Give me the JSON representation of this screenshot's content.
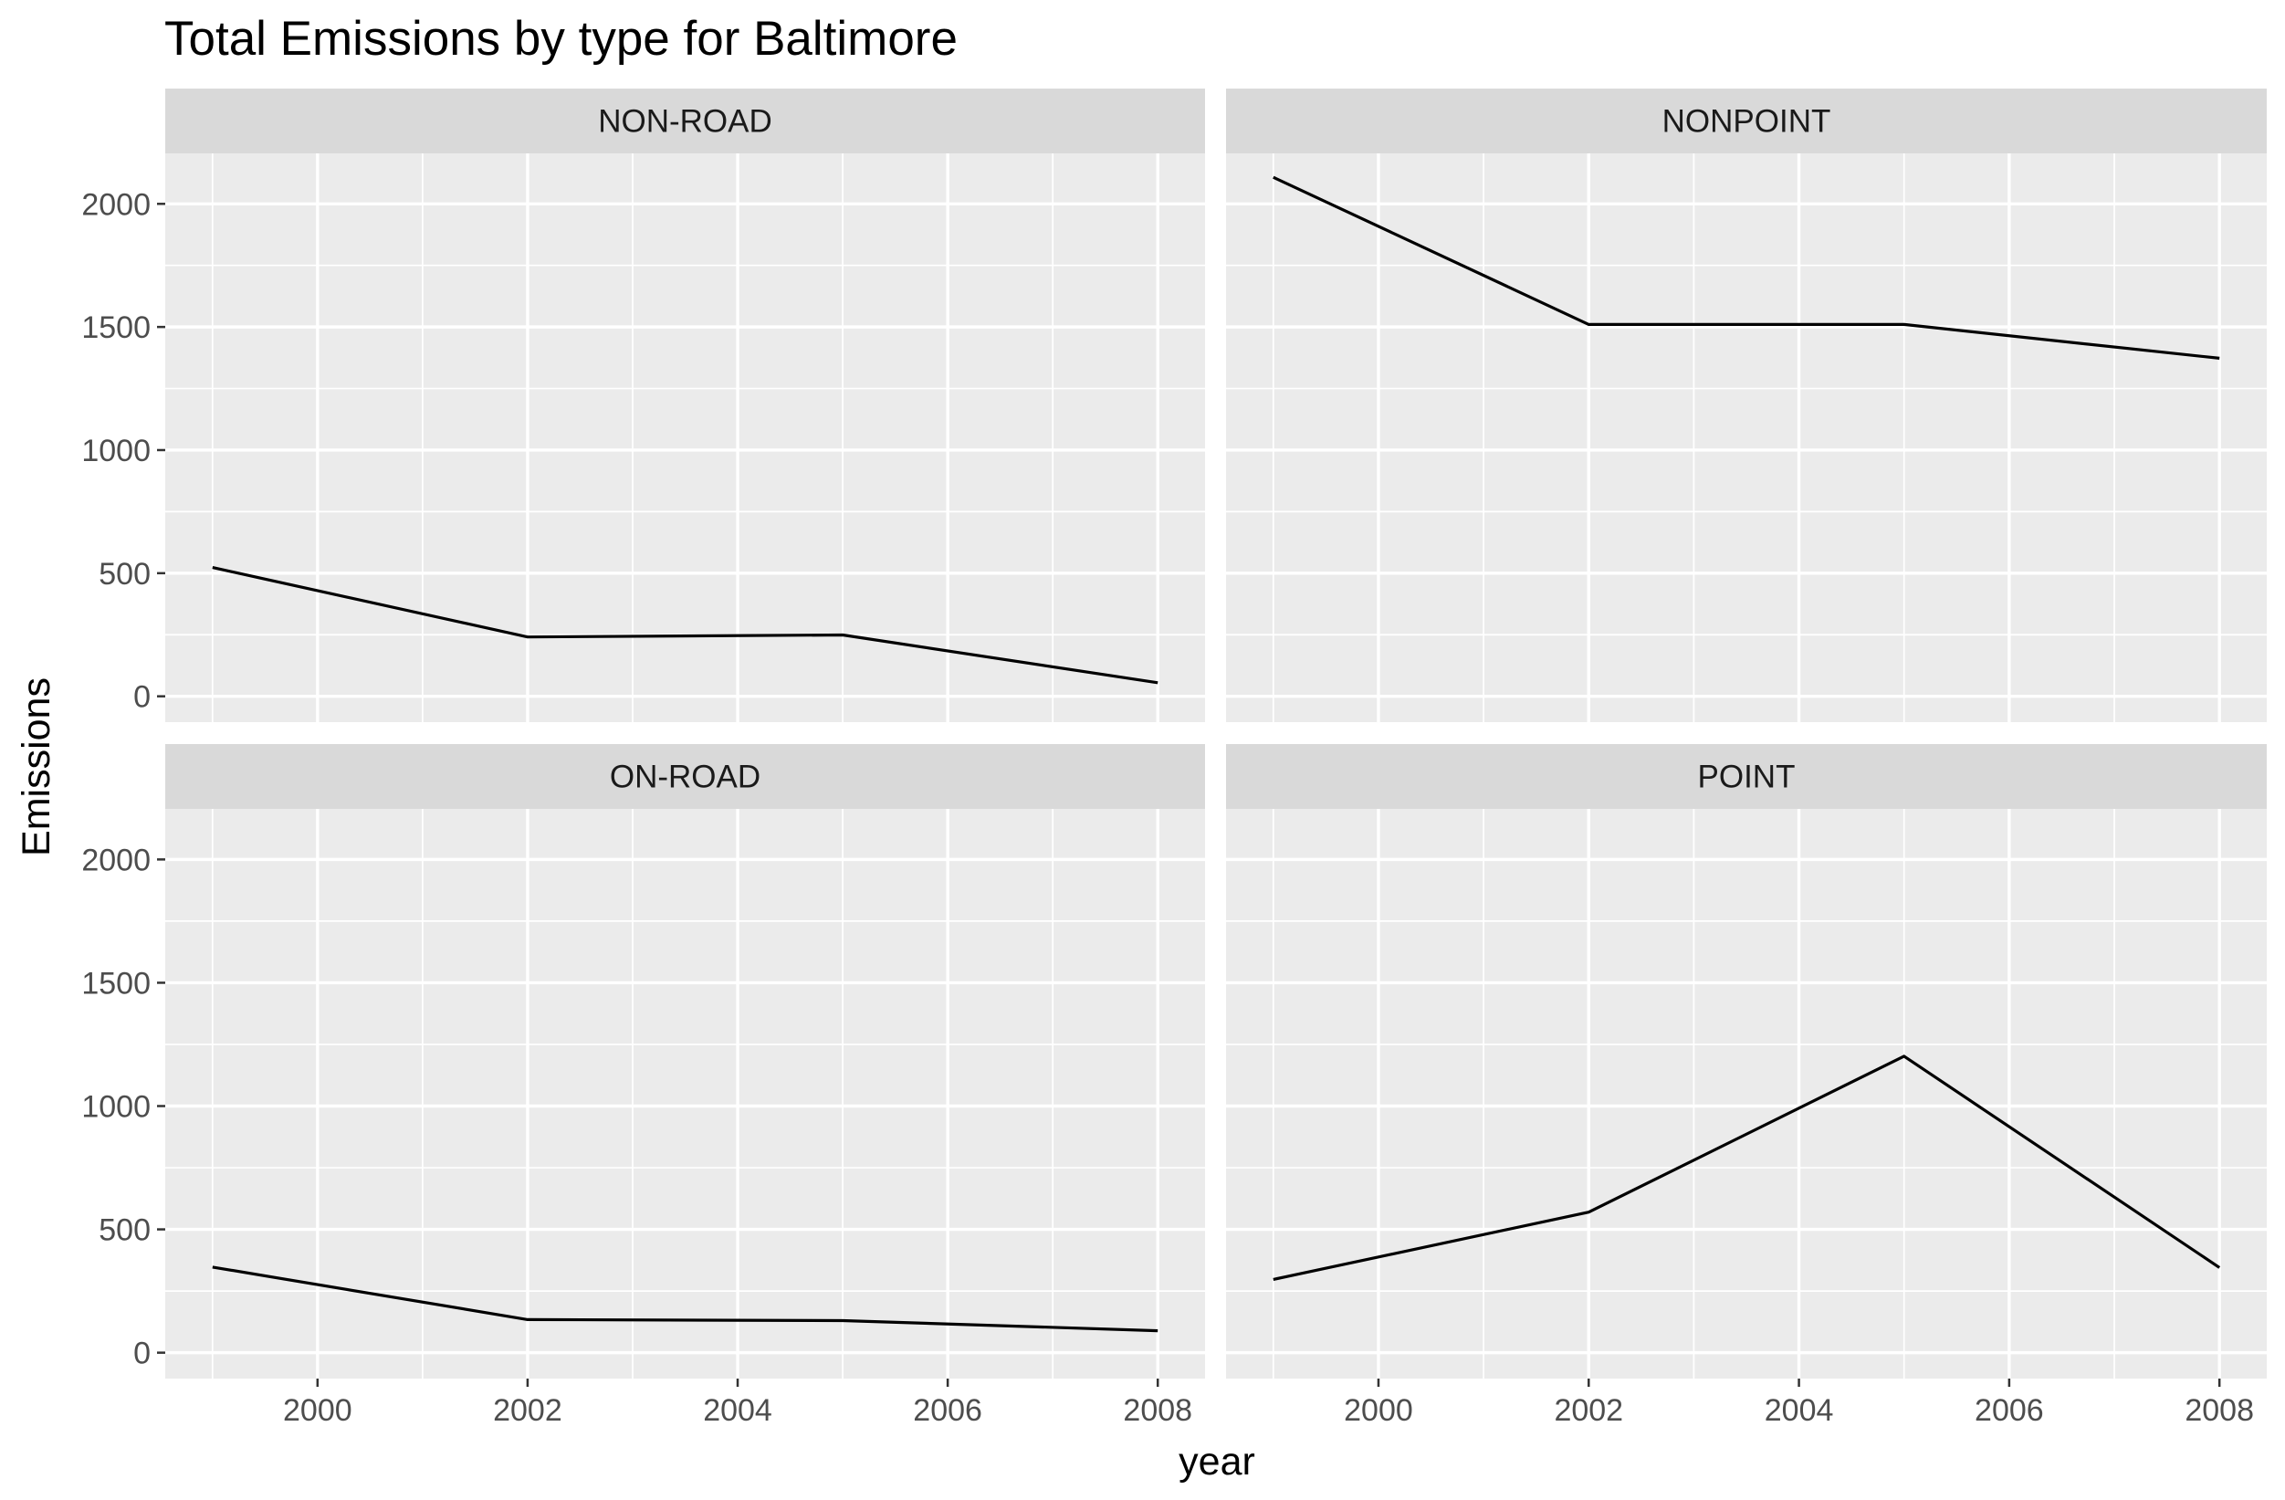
{
  "chart_data": {
    "type": "line",
    "title": "Total Emissions by type for Baltimore",
    "xlabel": "year",
    "ylabel": "Emissions",
    "xlim": [
      1998.55,
      2008.45
    ],
    "ylim": [
      -105,
      2205
    ],
    "x_ticks": [
      2000,
      2002,
      2004,
      2006,
      2008
    ],
    "y_ticks": [
      0,
      500,
      1000,
      1500,
      2000
    ],
    "grid": true,
    "facets": [
      {
        "strip": "NON-ROAD",
        "x": [
          1999,
          2002,
          2005,
          2008
        ],
        "y": [
          523,
          241,
          249,
          55
        ]
      },
      {
        "strip": "NONPOINT",
        "x": [
          1999,
          2002,
          2005,
          2008
        ],
        "y": [
          2108,
          1510,
          1510,
          1373
        ]
      },
      {
        "strip": "ON-ROAD",
        "x": [
          1999,
          2002,
          2005,
          2008
        ],
        "y": [
          347,
          134,
          130,
          89
        ]
      },
      {
        "strip": "POINT",
        "x": [
          1999,
          2002,
          2005,
          2008
        ],
        "y": [
          297,
          570,
          1202,
          345
        ]
      }
    ]
  }
}
